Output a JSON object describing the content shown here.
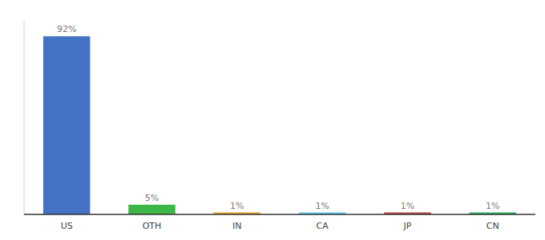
{
  "chart_data": {
    "type": "bar",
    "categories": [
      "US",
      "OTH",
      "IN",
      "CA",
      "JP",
      "CN"
    ],
    "values": [
      92,
      5,
      1,
      1,
      1,
      1
    ],
    "value_labels": [
      "92%",
      "5%",
      "1%",
      "1%",
      "1%",
      "1%"
    ],
    "colors": [
      "#4472c4",
      "#3cb644",
      "#e8a020",
      "#5bc8f5",
      "#b94040",
      "#27ae60"
    ],
    "ylim": [
      0,
      100
    ],
    "tick_labels": "x",
    "data_labels": true,
    "grid": false
  }
}
